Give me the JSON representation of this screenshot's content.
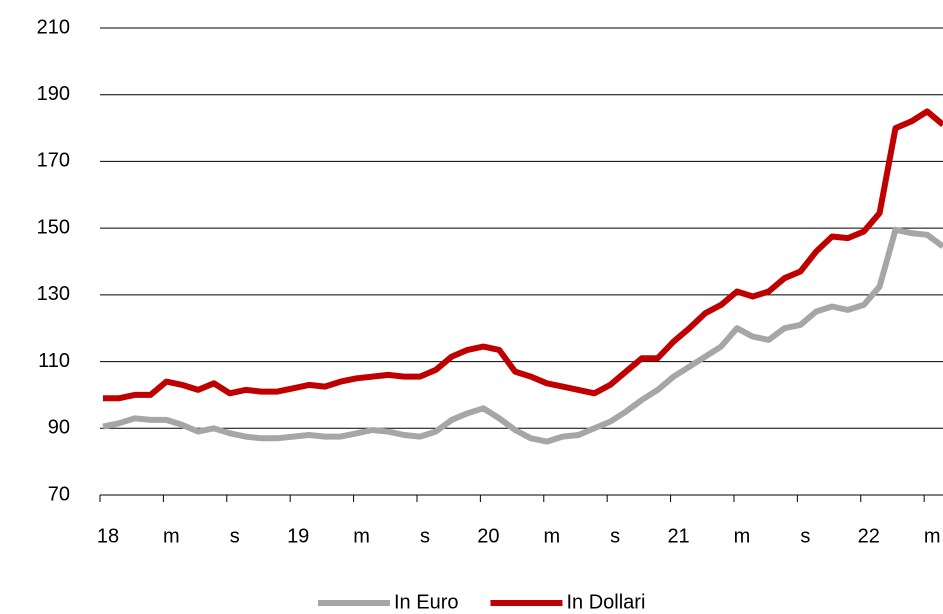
{
  "chart_data": {
    "type": "line",
    "categories": [
      "18",
      null,
      null,
      null,
      "m",
      null,
      null,
      null,
      "s",
      null,
      null,
      null,
      "19",
      null,
      null,
      null,
      "m",
      null,
      null,
      null,
      "s",
      null,
      null,
      null,
      "20",
      null,
      null,
      null,
      "m",
      null,
      null,
      null,
      "s",
      null,
      null,
      null,
      "21",
      null,
      null,
      null,
      "m",
      null,
      null,
      null,
      "s",
      null,
      null,
      null,
      "22",
      null,
      null,
      null,
      "m",
      null
    ],
    "series": [
      {
        "name": "In Euro",
        "color": "#a6a6a6",
        "values": [
          90.5,
          91.5,
          93,
          92.5,
          92.5,
          91,
          89,
          90,
          88.5,
          87.5,
          87,
          87,
          87.5,
          88,
          87.5,
          87.5,
          88.5,
          89.5,
          89,
          88,
          87.5,
          89,
          92.5,
          94.5,
          96,
          93,
          89.5,
          87,
          86,
          87.5,
          88,
          90,
          92,
          95,
          98.5,
          101.5,
          105.5,
          108.5,
          111.5,
          114.5,
          120,
          117.5,
          116.5,
          120,
          121,
          125,
          126.5,
          125.5,
          127,
          132.5,
          149.5,
          148.5,
          148,
          144.5
        ]
      },
      {
        "name": "In Dollari",
        "color": "#c00000",
        "values": [
          99,
          99,
          100,
          100,
          104,
          103,
          101.5,
          103.5,
          100.5,
          101.5,
          101,
          101,
          102,
          103,
          102.5,
          104,
          105,
          105.5,
          106,
          105.5,
          105.5,
          107.5,
          111.5,
          113.5,
          114.5,
          113.5,
          107,
          105.5,
          103.5,
          102.5,
          101.5,
          100.5,
          103,
          107,
          111,
          111,
          116,
          120,
          124.5,
          127,
          131,
          129.5,
          131,
          135,
          137,
          143,
          147.5,
          147,
          149,
          154.5,
          180,
          182,
          185,
          181
        ]
      }
    ],
    "ylim": [
      70,
      210
    ],
    "yticks": [
      70,
      90,
      110,
      130,
      150,
      170,
      190,
      210
    ],
    "grid": true,
    "legend": "bottom"
  }
}
